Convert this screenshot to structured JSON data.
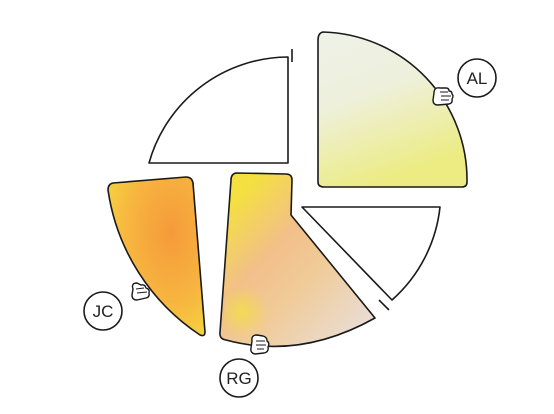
{
  "badges": [
    {
      "id": "al",
      "label": "AL"
    },
    {
      "id": "jc",
      "label": "JC"
    },
    {
      "id": "rg",
      "label": "RG"
    }
  ],
  "colors": {
    "stroke": "#1a1a1a",
    "al_light": "#eef0e6",
    "al_yellow": "#ecec86",
    "jc_orange": "#f7a63e",
    "jc_yellow": "#f3d23f",
    "rg_yellow": "#f4e040",
    "rg_peach": "#f2b98c",
    "rg_blush": "#ead7cc"
  },
  "icons": [
    "hand-icon-al",
    "hand-icon-jc",
    "hand-icon-rg"
  ]
}
